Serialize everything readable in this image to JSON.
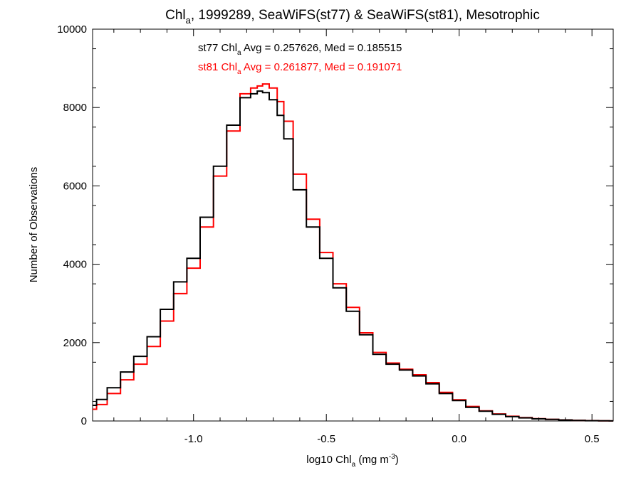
{
  "chart_data": {
    "type": "line",
    "title": {
      "prefix": "Chl",
      "sub": "a",
      "suffix": ", 1999289, SeaWiFS(st77) & SeaWiFS(st81), Mesotrophic"
    },
    "xlabel": {
      "prefix": "log10 Chl",
      "sub": "a",
      "mid": " (mg m",
      "sup": "-3",
      "suffix": ")"
    },
    "ylabel": "Number of Observations",
    "xlim": [
      -1.38,
      0.58
    ],
    "ylim": [
      0,
      10000
    ],
    "x_ticks": [
      {
        "value": -1.0,
        "label": "-1.0"
      },
      {
        "value": -0.5,
        "label": "-0.5"
      },
      {
        "value": 0.0,
        "label": "0.0"
      },
      {
        "value": 0.5,
        "label": "0.5"
      }
    ],
    "y_ticks": [
      {
        "value": 0,
        "label": "0"
      },
      {
        "value": 2000,
        "label": "2000"
      },
      {
        "value": 4000,
        "label": "4000"
      },
      {
        "value": 6000,
        "label": "6000"
      },
      {
        "value": 8000,
        "label": "8000"
      },
      {
        "value": 10000,
        "label": "10000"
      }
    ],
    "annotations": [
      {
        "prefix": "st77 Chl",
        "sub": "a",
        "suffix": " Avg = 0.257626, Med = 0.185515",
        "color": "#000000"
      },
      {
        "prefix": "st81 Chl",
        "sub": "a",
        "suffix": " Avg = 0.261877, Med = 0.191071",
        "color": "#ff0000"
      }
    ],
    "series": [
      {
        "color": "#000000",
        "x": [
          -1.38,
          -1.35,
          -1.3,
          -1.25,
          -1.2,
          -1.15,
          -1.1,
          -1.05,
          -1.0,
          -0.95,
          -0.9,
          -0.85,
          -0.8,
          -0.77,
          -0.75,
          -0.73,
          -0.7,
          -0.67,
          -0.65,
          -0.6,
          -0.55,
          -0.5,
          -0.45,
          -0.4,
          -0.35,
          -0.3,
          -0.25,
          -0.2,
          -0.15,
          -0.1,
          -0.05,
          0.0,
          0.05,
          0.1,
          0.15,
          0.2,
          0.25,
          0.3,
          0.35,
          0.4,
          0.45,
          0.5,
          0.55,
          0.58
        ],
        "y": [
          400,
          550,
          850,
          1250,
          1650,
          2150,
          2850,
          3550,
          4150,
          5200,
          6500,
          7550,
          8250,
          8350,
          8420,
          8380,
          8200,
          7800,
          7200,
          5900,
          4950,
          4150,
          3400,
          2800,
          2200,
          1700,
          1450,
          1300,
          1150,
          950,
          700,
          520,
          350,
          250,
          170,
          110,
          80,
          55,
          40,
          25,
          15,
          8,
          4,
          2
        ]
      },
      {
        "color": "#ff0000",
        "x": [
          -1.38,
          -1.35,
          -1.3,
          -1.25,
          -1.2,
          -1.15,
          -1.1,
          -1.05,
          -1.0,
          -0.95,
          -0.9,
          -0.85,
          -0.8,
          -0.77,
          -0.75,
          -0.73,
          -0.7,
          -0.67,
          -0.65,
          -0.6,
          -0.55,
          -0.5,
          -0.45,
          -0.4,
          -0.35,
          -0.3,
          -0.25,
          -0.2,
          -0.15,
          -0.1,
          -0.05,
          0.0,
          0.05,
          0.1,
          0.15,
          0.2,
          0.25,
          0.3,
          0.35,
          0.4,
          0.45,
          0.5,
          0.55,
          0.58
        ],
        "y": [
          300,
          420,
          700,
          1050,
          1450,
          1900,
          2550,
          3250,
          3900,
          4950,
          6250,
          7400,
          8350,
          8500,
          8550,
          8600,
          8500,
          8150,
          7650,
          6300,
          5150,
          4300,
          3500,
          2900,
          2250,
          1750,
          1480,
          1320,
          1180,
          980,
          730,
          540,
          370,
          260,
          180,
          120,
          85,
          60,
          42,
          27,
          16,
          9,
          5,
          2
        ]
      }
    ]
  }
}
